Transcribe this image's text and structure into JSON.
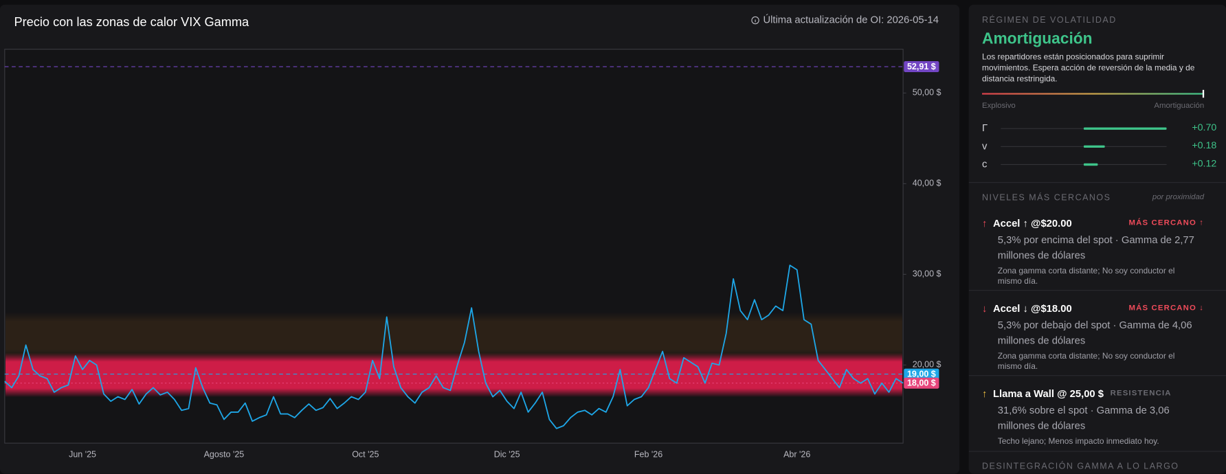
{
  "chart_data": {
    "type": "line",
    "title": "Precio con las zonas de calor VIX Gamma",
    "update_note": "Última actualización de OI: 2026-05-14",
    "categories": [
      null,
      null,
      null,
      null,
      null,
      null,
      null,
      null,
      null,
      null,
      null,
      "Jun '25",
      null,
      null,
      null,
      null,
      null,
      null,
      null,
      null,
      null,
      null,
      null,
      null,
      null,
      null,
      null,
      null,
      null,
      null,
      null,
      "Agosto '25",
      null,
      null,
      null,
      null,
      null,
      null,
      null,
      null,
      null,
      null,
      null,
      null,
      null,
      null,
      null,
      null,
      null,
      null,
      null,
      "Oct '25",
      null,
      null,
      null,
      null,
      null,
      null,
      null,
      null,
      null,
      null,
      null,
      null,
      null,
      null,
      null,
      null,
      null,
      null,
      null,
      "Dic '25",
      null,
      null,
      null,
      null,
      null,
      null,
      null,
      null,
      null,
      null,
      null,
      null,
      null,
      null,
      null,
      null,
      null,
      null,
      null,
      "Feb '26",
      null,
      null,
      null,
      null,
      null,
      null,
      null,
      null,
      null,
      null,
      null,
      null,
      null,
      null,
      null,
      null,
      null,
      null,
      null,
      null,
      "Abr '26",
      null,
      null,
      null,
      null,
      null,
      null,
      null,
      null,
      null,
      null,
      null,
      null,
      null,
      null,
      null
    ],
    "values": [
      18.2,
      17.5,
      18.8,
      22.2,
      19.5,
      18.8,
      18.5,
      17,
      17.5,
      17.8,
      21,
      19.5,
      20.5,
      20,
      16.8,
      16,
      16.5,
      16.2,
      17.3,
      15.7,
      16.8,
      17.5,
      16.7,
      17,
      16.2,
      15,
      15.2,
      19.7,
      17.5,
      15.8,
      15.6,
      14,
      14.8,
      14.8,
      15.8,
      13.8,
      14.2,
      14.5,
      16.5,
      14.6,
      14.6,
      14.2,
      15,
      15.7,
      15,
      15.3,
      16.3,
      15.2,
      15.8,
      16.5,
      16.2,
      17,
      20.5,
      18.5,
      25.3,
      19.8,
      17.5,
      16.5,
      15.8,
      17,
      17.5,
      18.8,
      17.5,
      17.2,
      20,
      22.5,
      26.3,
      21.5,
      18,
      16.5,
      17.2,
      16,
      15.2,
      17,
      14.8,
      15.8,
      17,
      14,
      13,
      13.3,
      14.2,
      14.8,
      15,
      14.5,
      15.2,
      14.8,
      16.5,
      19.5,
      15.5,
      16.2,
      16.5,
      17.5,
      19.5,
      21.5,
      18.5,
      18,
      20.8,
      20.3,
      19.8,
      18,
      20.2,
      20,
      23.5,
      29.5,
      26,
      25,
      27.2,
      25,
      25.5,
      26.5,
      26,
      31,
      30.5,
      25,
      24.5,
      20.5,
      19.5,
      18.5,
      17.5,
      19.5,
      18.5,
      18,
      18.5,
      16.8,
      18,
      17,
      18.5,
      18
    ],
    "color": "#1ea7e8",
    "ylim": [
      11.38,
      54.83
    ],
    "yticks": [
      {
        "value": 20,
        "label": "20,00 $"
      },
      {
        "value": 30,
        "label": "30,00 $"
      },
      {
        "value": 40,
        "label": "40,00 $"
      },
      {
        "value": 50,
        "label": "50,00 $"
      }
    ],
    "levels": [
      {
        "value": 52.91,
        "label": "52,91 $",
        "color": "#7346c4",
        "dash": "dashed"
      },
      {
        "value": 19,
        "label": "19,00 $",
        "color": "#1ea7e8",
        "dash": "dashed"
      },
      {
        "value": 18,
        "label": "18,00 $",
        "color": "#e8467c",
        "dash": "dotted"
      }
    ],
    "zones": [
      {
        "from": 16.8,
        "to": 21,
        "color": "#d81e4a",
        "opacity": 0.95
      },
      {
        "from": 21,
        "to": 25.5,
        "color": "#5a3a1a",
        "opacity": 0.35
      }
    ]
  },
  "sidebar": {
    "regime": {
      "heading": "RÉGIMEN DE VOLATILIDAD",
      "name": "Amortiguación",
      "description": "Los repartidores están posicionados para suprimir movimientos. Espera acción de reversión de la media y de distancia restringida.",
      "scale_left": "Explosivo",
      "scale_right": "Amortiguación",
      "metrics_xlim": [
        -0.7,
        0.7
      ],
      "metrics": [
        {
          "name": "Γ",
          "value": 0.7,
          "value_label": "+0.70"
        },
        {
          "name": "v",
          "value": 0.18,
          "value_label": "+0.18"
        },
        {
          "name": "c",
          "value": 0.12,
          "value_label": "+0.12"
        }
      ]
    },
    "levels": {
      "heading": "NIVELES MÁS CERCANOS",
      "sort_note": "por proximidad",
      "items": [
        {
          "icon": "↑",
          "title": "Accel ↑ @$20.00",
          "badge": "MÁS CERCANO ↑",
          "detail": "5,3% por encima del spot · Gamma de 2,77 millones de dólares",
          "note": "Zona gamma corta distante; No soy conductor el mismo día."
        },
        {
          "icon": "↓",
          "title": "Accel ↓ @$18.00",
          "badge": "MÁS CERCANO ↓",
          "detail": "5,3% por debajo del spot · Gamma de 4,06 millones de dólares",
          "note": "Zona gamma corta distante; No soy conductor el mismo día."
        },
        {
          "icon": "↑",
          "title": "Llama a Wall @ 25,00 $",
          "badge": "RESISTENCIA",
          "detail": "31,6% sobre el spot · Gamma de 3,06 millones de dólares",
          "note": "Techo lejano; Menos impacto inmediato hoy."
        }
      ]
    },
    "footer_heading": "DESINTEGRACIÓN GAMMA A LO LARGO"
  }
}
